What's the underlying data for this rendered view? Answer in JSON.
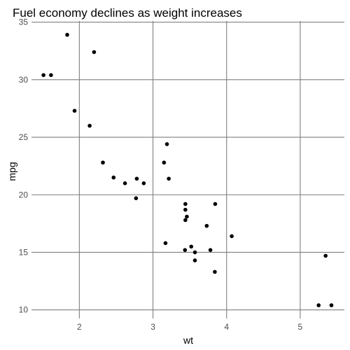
{
  "chart_data": {
    "type": "scatter",
    "title": "Fuel economy declines as weight increases",
    "xlabel": "wt",
    "ylabel": "mpg",
    "xlim": [
      1.35,
      5.6
    ],
    "ylim": [
      9.25,
      35.1
    ],
    "x_ticks": [
      2,
      3,
      4,
      5
    ],
    "y_ticks": [
      10,
      15,
      20,
      25,
      30,
      35
    ],
    "grid": true,
    "legend": "none",
    "point_color": "#000000",
    "grid_color": "#7f7f7f",
    "points": [
      {
        "x": 2.62,
        "y": 21.0
      },
      {
        "x": 2.875,
        "y": 21.0
      },
      {
        "x": 2.32,
        "y": 22.8
      },
      {
        "x": 3.215,
        "y": 21.4
      },
      {
        "x": 3.44,
        "y": 18.7
      },
      {
        "x": 3.46,
        "y": 18.1
      },
      {
        "x": 3.57,
        "y": 14.3
      },
      {
        "x": 3.19,
        "y": 24.4
      },
      {
        "x": 3.15,
        "y": 22.8
      },
      {
        "x": 3.44,
        "y": 19.2
      },
      {
        "x": 3.44,
        "y": 17.8
      },
      {
        "x": 4.07,
        "y": 16.4
      },
      {
        "x": 3.73,
        "y": 17.3
      },
      {
        "x": 3.78,
        "y": 15.2
      },
      {
        "x": 5.25,
        "y": 10.4
      },
      {
        "x": 5.424,
        "y": 10.4
      },
      {
        "x": 5.345,
        "y": 14.7
      },
      {
        "x": 2.2,
        "y": 32.4
      },
      {
        "x": 1.615,
        "y": 30.4
      },
      {
        "x": 1.835,
        "y": 33.9
      },
      {
        "x": 2.465,
        "y": 21.5
      },
      {
        "x": 3.52,
        "y": 15.5
      },
      {
        "x": 3.435,
        "y": 15.2
      },
      {
        "x": 3.84,
        "y": 13.3
      },
      {
        "x": 3.845,
        "y": 19.2
      },
      {
        "x": 1.935,
        "y": 27.3
      },
      {
        "x": 2.14,
        "y": 26.0
      },
      {
        "x": 1.513,
        "y": 30.4
      },
      {
        "x": 3.17,
        "y": 15.8
      },
      {
        "x": 2.77,
        "y": 19.7
      },
      {
        "x": 3.57,
        "y": 15.0
      },
      {
        "x": 2.78,
        "y": 21.4
      }
    ]
  }
}
